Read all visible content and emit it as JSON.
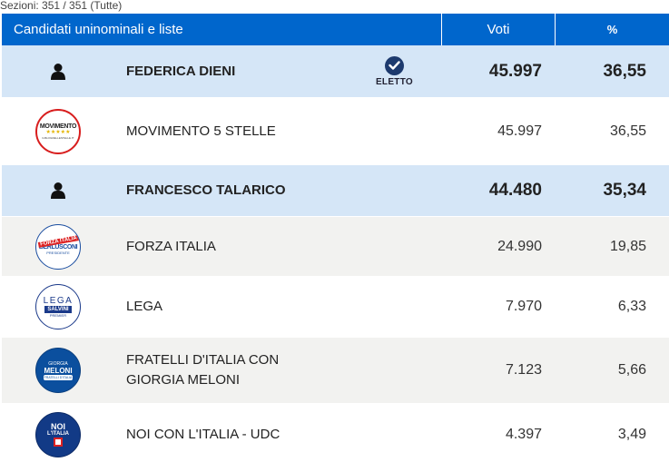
{
  "header": {
    "sezioni": "Sezioni: 351 / 351 (Tutte)",
    "col_name": "Candidati uninominali e liste",
    "col_voti": "Voti",
    "col_pct": "%"
  },
  "rows": [
    {
      "type": "candidate",
      "icon": "person-icon",
      "name": "FEDERICA DIENI",
      "elected_label": "ELETTO",
      "voti": "45.997",
      "pct": "36,55"
    },
    {
      "type": "list",
      "icon": "movimento-5-stelle-logo",
      "name": "MOVIMENTO 5 STELLE",
      "voti": "45.997",
      "pct": "36,55",
      "logo_text": "MOVIMENTO",
      "logo_stars": "★★★★★",
      "logo_sub": "ILBLOGDELLESTELLE.IT"
    },
    {
      "type": "candidate",
      "icon": "person-icon",
      "name": "FRANCESCO TALARICO",
      "voti": "44.480",
      "pct": "35,34"
    },
    {
      "type": "list",
      "icon": "forza-italia-logo",
      "name": "FORZA ITALIA",
      "voti": "24.990",
      "pct": "19,85",
      "logo_text": "FORZA ITALIA",
      "logo_sub": "BERLUSCONI",
      "logo_sub2": "PRESIDENTE"
    },
    {
      "type": "list",
      "icon": "lega-logo",
      "name": "LEGA",
      "voti": "7.970",
      "pct": "6,33",
      "logo_text": "LEGA",
      "logo_sub": "SALVINI",
      "logo_sub2": "PREMIER"
    },
    {
      "type": "list",
      "icon": "fratelli-d-italia-logo",
      "name_line1": "FRATELLI D'ITALIA CON",
      "name_line2": "GIORGIA MELONI",
      "voti": "7.123",
      "pct": "5,66",
      "logo_text": "GIORGIA",
      "logo_sub": "MELONI",
      "logo_sub2": "FRATELLI D'ITALIA"
    },
    {
      "type": "list",
      "icon": "noi-con-l-italia-logo",
      "name": "NOI CON L'ITALIA - UDC",
      "voti": "4.397",
      "pct": "3,49",
      "logo_text": "NOI",
      "logo_sub": "L'ITALIA"
    }
  ],
  "colors": {
    "header_bg": "#0066cc",
    "candidate_bg": "#d5e6f7",
    "grey_row_bg": "#f2f2f0",
    "elected_badge": "#1d3a6e"
  }
}
